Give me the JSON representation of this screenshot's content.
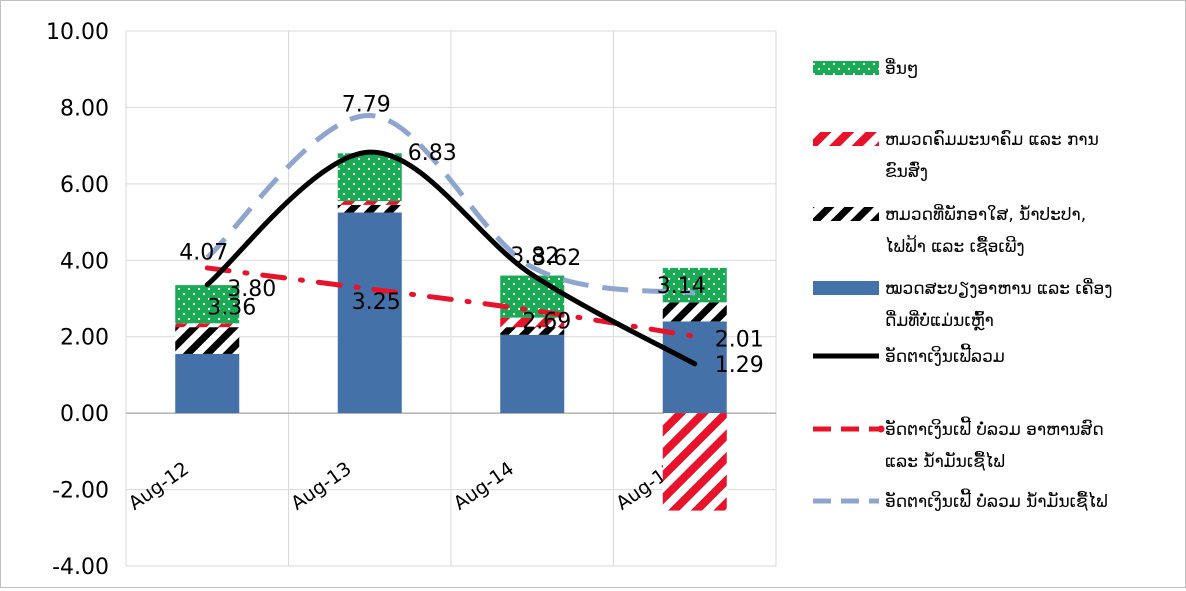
{
  "chart_data": {
    "type": "bar",
    "categories": [
      "Aug-12",
      "Aug-13",
      "Aug-14",
      "Aug-15"
    ],
    "ylim": [
      -4,
      10
    ],
    "yticks": [
      "10.00",
      "8.00",
      "6.00",
      "4.00",
      "2.00",
      "0.00",
      "-2.00",
      "-4.00"
    ],
    "grid": true,
    "legend_position": "right",
    "stacked_bars": [
      {
        "name": "ໝວດສະບຽງອາຫານ ແລະ ເຄື່ອງດື່ມທີ່ບໍ່ແມ່ນເຫຼົ້າ",
        "color": "#4472a8",
        "pattern": "solid",
        "values": [
          1.55,
          5.25,
          2.05,
          2.4
        ]
      },
      {
        "name": "ຫມວດທີ່ພັກອາໃສ, ນໍ້າປະປາ, ໄຟຟ້າ ແລະ ເຊື້ອເພີງ",
        "color": "#000000",
        "pattern": "diagonal",
        "values": [
          0.7,
          0.2,
          0.2,
          0.5
        ]
      },
      {
        "name": "ຫມວດຄົມມະນາຄົມ ແລະ ການຂົນສົ່ງ",
        "color": "#e8132a",
        "pattern": "diagonal",
        "values": [
          0.1,
          0.1,
          0.25,
          -2.55
        ]
      },
      {
        "name": "ອື່ນໆ",
        "color": "#1aaa55",
        "pattern": "dots",
        "values": [
          1.0,
          1.25,
          1.1,
          0.9
        ]
      }
    ],
    "lines": [
      {
        "name": "ອັດຕາເງິນເຟີ້ລວມ",
        "color": "#000000",
        "style": "solid",
        "values": [
          3.36,
          6.83,
          3.62,
          1.29
        ],
        "labels": [
          "3.36",
          "6.83",
          "3.62",
          "1.29"
        ]
      },
      {
        "name": "ອັດຕາເງິນເຟີ້ ບໍ່ລວມ ອາຫານສົດ ແລະ ນໍ້າມັນເຊື້ໄຟ",
        "color": "#e8132a",
        "style": "dash-dot",
        "values": [
          3.8,
          3.25,
          2.69,
          2.01
        ],
        "labels": [
          "3.80",
          "3.25",
          "2.69",
          "2.01"
        ]
      },
      {
        "name": "ອັດຕາເງິນເຟີ້ ບໍ່ລວມ ນໍ້າມັນເຊື້ໄຟ",
        "color": "#8ea6cf",
        "style": "dashed",
        "values": [
          4.07,
          7.79,
          3.82,
          3.14
        ],
        "labels": [
          "4.07",
          "7.79",
          "3.82",
          "3.14"
        ]
      }
    ],
    "legend": [
      {
        "key": "other",
        "lines": [
          "ອື່ນໆ"
        ]
      },
      {
        "key": "transport",
        "lines": [
          "ຫມວດຄົມມະນາຄົມ ແລະ ການ",
          "ຂົນສົ່ງ"
        ]
      },
      {
        "key": "housing",
        "lines": [
          "ຫມວດທີ່ພັກອາໃສ, ນໍ້າປະປາ,",
          "ໄຟຟ້າ ແລະ ເຊື້ອເພີງ"
        ]
      },
      {
        "key": "food",
        "lines": [
          "ໝວດສະບຽງອາຫານ ແລະ ເຄື່ອງ",
          "ດື່ມທີ່ບໍ່ແມ່ນເຫຼົ້າ"
        ]
      },
      {
        "key": "headline",
        "lines": [
          "ອັດຕາເງິນເຟີ້ລວມ"
        ]
      },
      {
        "key": "core",
        "lines": [
          "ອັດຕາເງິນເຟີ້ ບໍ່ລວມ ອາຫານສົດ",
          "ແລະ ນໍ້າມັນເຊື້ໄຟ"
        ]
      },
      {
        "key": "exfuel",
        "lines": [
          "ອັດຕາເງິນເຟີ້ ບໍ່ລວມ ນໍ້າມັນເຊື້ໄຟ"
        ]
      }
    ]
  }
}
